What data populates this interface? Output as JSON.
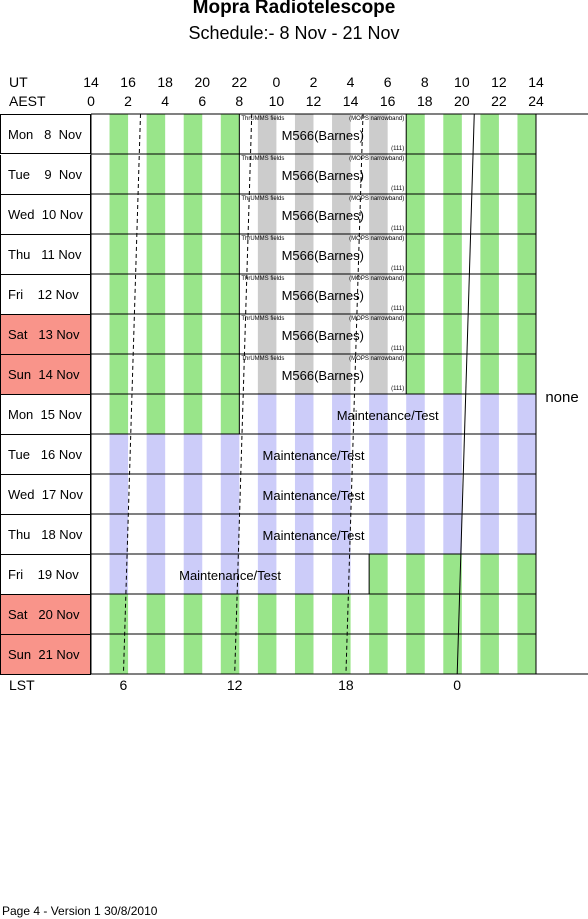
{
  "title": "Mopra Radiotelescope",
  "subtitle": "Schedule:- 8  Nov - 21 Nov",
  "header": {
    "ut_label": "UT",
    "aest_label": "AEST",
    "ut_hours": [
      "14",
      "16",
      "18",
      "20",
      "22",
      "0",
      "2",
      "4",
      "6",
      "8",
      "10",
      "12",
      "14"
    ],
    "aest_hours": [
      "0",
      "2",
      "4",
      "6",
      "8",
      "10",
      "12",
      "14",
      "16",
      "18",
      "20",
      "22",
      "24"
    ]
  },
  "days": [
    {
      "label": "Mon   8  Nov",
      "weekend": false
    },
    {
      "label": "Tue    9  Nov",
      "weekend": false
    },
    {
      "label": "Wed  10 Nov",
      "weekend": false
    },
    {
      "label": "Thu   11 Nov",
      "weekend": false
    },
    {
      "label": "Fri    12 Nov",
      "weekend": false
    },
    {
      "label": "Sat   13 Nov",
      "weekend": true
    },
    {
      "label": "Sun  14 Nov",
      "weekend": true
    },
    {
      "label": "Mon  15 Nov",
      "weekend": false
    },
    {
      "label": "Tue   16 Nov",
      "weekend": false
    },
    {
      "label": "Wed  17 Nov",
      "weekend": false
    },
    {
      "label": "Thu   18 Nov",
      "weekend": false
    },
    {
      "label": "Fri    19 Nov",
      "weekend": false
    },
    {
      "label": "Sat   20 Nov",
      "weekend": true
    },
    {
      "label": "Sun  21 Nov",
      "weekend": true
    }
  ],
  "project_block": {
    "name": "M566(Barnes)",
    "left_note": "ThrUMMS fields",
    "right_note": "(MOPS narrowband)",
    "corner_note": "(111)"
  },
  "maintenance_label": "Maintenance/Test",
  "none_label": "none",
  "lst": {
    "label": "LST",
    "ticks": [
      "6",
      "12",
      "18",
      "0"
    ]
  },
  "colors": {
    "green": "#99e58a",
    "gray": "#cccccc",
    "lavender": "#ccccf9",
    "weekend": "#f9948a"
  },
  "footer": "Page 4 - Version 1  30/8/2010"
}
